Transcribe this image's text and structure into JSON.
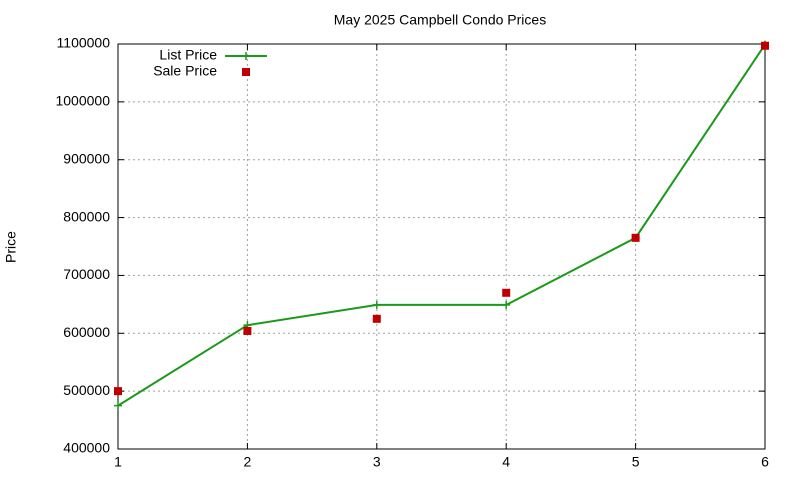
{
  "chart_data": {
    "type": "line",
    "title": "May 2025 Campbell Condo Prices",
    "y_label": "Price",
    "x": [
      1,
      2,
      3,
      4,
      5,
      6
    ],
    "series": [
      {
        "name": "List Price",
        "color": "#1a9a1a",
        "style": "linespoints",
        "values": [
          475000,
          614000,
          649000,
          649000,
          765000,
          1099000
        ]
      },
      {
        "name": "Sale Price",
        "color": "#c00000",
        "style": "points",
        "values": [
          500000,
          604000,
          625000,
          670000,
          765000,
          1097000
        ]
      }
    ],
    "xlim": [
      1,
      6
    ],
    "xticks": [
      1,
      2,
      3,
      4,
      5,
      6
    ],
    "ylim": [
      400000,
      1100000
    ],
    "yticks": [
      400000,
      500000,
      600000,
      700000,
      800000,
      900000,
      1000000,
      1100000
    ],
    "grid": true,
    "legend": "top-left"
  }
}
